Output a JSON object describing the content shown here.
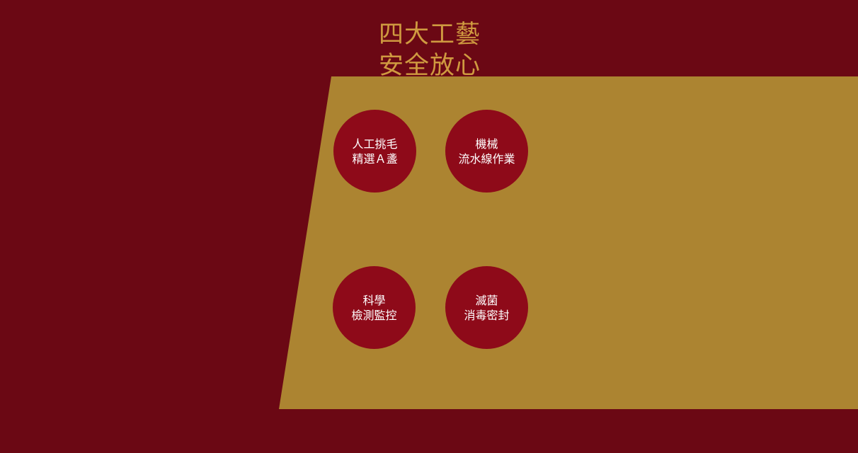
{
  "heading": {
    "line1": "四大工藝",
    "line2": "安全放心"
  },
  "colors": {
    "background": "#6b0814",
    "panel": "#ac8431",
    "heading": "#cf9a40",
    "badge": "#8e0a19",
    "badge_text": "#ffffff"
  },
  "features": [
    {
      "line1": "人工挑毛",
      "line2": "精選Ａ盞"
    },
    {
      "line1": "機械",
      "line2": "流水線作業"
    },
    {
      "line1": "科學",
      "line2": "檢測監控"
    },
    {
      "line1": "滅菌",
      "line2": "消毒密封"
    }
  ]
}
